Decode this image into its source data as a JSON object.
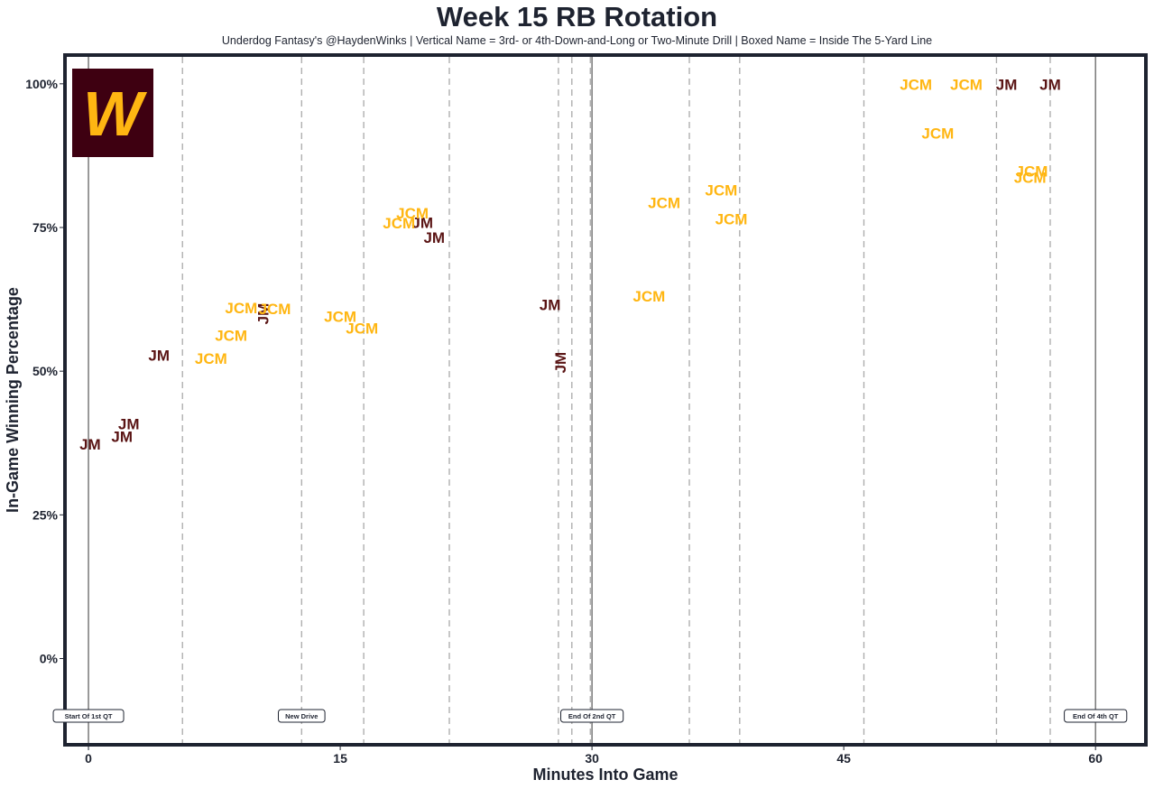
{
  "chart_data": {
    "type": "scatter",
    "title": "Week 15 RB Rotation",
    "subtitle": "Underdog Fantasy's @HaydenWinks | Vertical Name = 3rd- or 4th-Down-and-Long or Two-Minute Drill | Boxed Name = Inside The 5-Yard Line",
    "xlabel": "Minutes Into Game",
    "ylabel": "In-Game Winning Percentage",
    "xlim": [
      -1.4,
      63.0
    ],
    "ylim": [
      -15,
      105
    ],
    "xticks": [
      0,
      15,
      30,
      45,
      60
    ],
    "xtick_labels": [
      "0",
      "15",
      "30",
      "45",
      "60"
    ],
    "yticks": [
      0,
      25,
      50,
      75,
      100
    ],
    "ytick_labels": [
      "0%",
      "25%",
      "50%",
      "75%",
      "100%"
    ],
    "grid": false,
    "logo_letter": "W",
    "colors": {
      "JCM": "#FFB612",
      "JM": "#5A1414",
      "frame": "#1e2330",
      "logo_bg": "#3e0011"
    },
    "solid_lines": [
      0,
      30,
      60
    ],
    "dashed_lines": [
      5.6,
      12.7,
      16.4,
      21.5,
      28.0,
      28.8,
      29.9,
      35.8,
      38.8,
      46.2,
      54.1,
      57.3
    ],
    "event_labels": [
      {
        "x": 0,
        "text": "Start Of 1st QT"
      },
      {
        "x": 12.7,
        "text": "New Drive"
      },
      {
        "x": 30,
        "text": "End Of 2nd QT"
      },
      {
        "x": 60,
        "text": "End Of 4th QT"
      }
    ],
    "series": [
      {
        "name": "JM",
        "points": [
          {
            "x": 0.1,
            "y": 37.3,
            "label": "JM",
            "vertical": false
          },
          {
            "x": 2.0,
            "y": 38.6,
            "label": "JM",
            "vertical": false
          },
          {
            "x": 2.4,
            "y": 40.8,
            "label": "JM",
            "vertical": false
          },
          {
            "x": 4.2,
            "y": 52.8,
            "label": "JM",
            "vertical": false
          },
          {
            "x": 10.4,
            "y": 60.0,
            "label": "JM",
            "vertical": true
          },
          {
            "x": 19.9,
            "y": 75.9,
            "label": "JM",
            "vertical": false
          },
          {
            "x": 20.6,
            "y": 73.3,
            "label": "JM",
            "vertical": false
          },
          {
            "x": 27.5,
            "y": 61.6,
            "label": "JM",
            "vertical": false
          },
          {
            "x": 28.1,
            "y": 51.5,
            "label": "JM",
            "vertical": true
          },
          {
            "x": 54.7,
            "y": 99.9,
            "label": "JM",
            "vertical": false
          },
          {
            "x": 57.3,
            "y": 99.9,
            "label": "JM",
            "vertical": false
          }
        ]
      },
      {
        "name": "JCM",
        "points": [
          {
            "x": 7.3,
            "y": 52.2,
            "label": "JCM",
            "vertical": false
          },
          {
            "x": 8.5,
            "y": 56.2,
            "label": "JCM",
            "vertical": false
          },
          {
            "x": 9.1,
            "y": 61.0,
            "label": "JCM",
            "vertical": false
          },
          {
            "x": 11.1,
            "y": 60.9,
            "label": "JCM",
            "vertical": false
          },
          {
            "x": 15.0,
            "y": 59.5,
            "label": "JCM",
            "vertical": false
          },
          {
            "x": 16.3,
            "y": 57.5,
            "label": "JCM",
            "vertical": false
          },
          {
            "x": 18.5,
            "y": 75.8,
            "label": "JCM",
            "vertical": false
          },
          {
            "x": 19.3,
            "y": 77.5,
            "label": "JCM",
            "vertical": false
          },
          {
            "x": 33.4,
            "y": 63.1,
            "label": "JCM",
            "vertical": false
          },
          {
            "x": 34.3,
            "y": 79.3,
            "label": "JCM",
            "vertical": false
          },
          {
            "x": 37.7,
            "y": 81.5,
            "label": "JCM",
            "vertical": false
          },
          {
            "x": 38.3,
            "y": 76.5,
            "label": "JCM",
            "vertical": false
          },
          {
            "x": 49.3,
            "y": 99.9,
            "label": "JCM",
            "vertical": false
          },
          {
            "x": 50.6,
            "y": 91.4,
            "label": "JCM",
            "vertical": false
          },
          {
            "x": 52.3,
            "y": 99.9,
            "label": "JCM",
            "vertical": false
          },
          {
            "x": 56.1,
            "y": 83.7,
            "label": "JCM",
            "vertical": false
          },
          {
            "x": 56.2,
            "y": 84.8,
            "label": "JCM",
            "vertical": false
          }
        ]
      }
    ]
  }
}
